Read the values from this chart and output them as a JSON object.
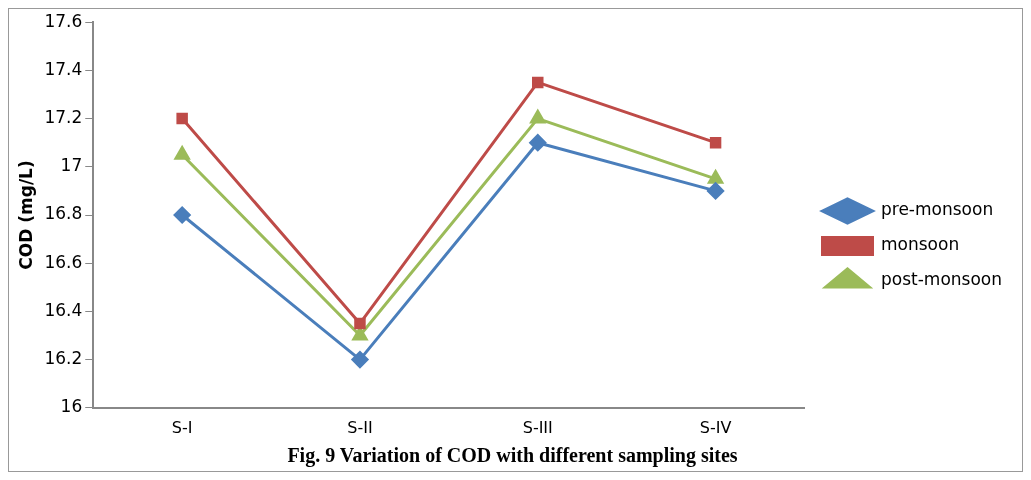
{
  "chart_data": {
    "type": "line",
    "title": "Fig. 9 Variation of COD with different sampling sites",
    "ylabel": "COD (mg/L)",
    "categories": [
      "S-I",
      "S-II",
      "S-III",
      "S-IV"
    ],
    "series": [
      {
        "name": "pre-monsoon",
        "color": "#4a7ebb",
        "marker": "diamond",
        "values": [
          16.8,
          16.2,
          17.1,
          16.9
        ]
      },
      {
        "name": "monsoon",
        "color": "#be4b48",
        "marker": "square",
        "values": [
          17.2,
          16.35,
          17.35,
          17.1
        ]
      },
      {
        "name": "post-monsoon",
        "color": "#9bbb59",
        "marker": "triangle",
        "values": [
          17.05,
          16.3,
          17.2,
          16.95
        ]
      }
    ],
    "ylim": [
      16,
      17.6
    ],
    "yticks": [
      16,
      16.2,
      16.4,
      16.6,
      16.8,
      17,
      17.2,
      17.4,
      17.6
    ],
    "grid": false,
    "legend": "right",
    "line_style": "solid"
  }
}
